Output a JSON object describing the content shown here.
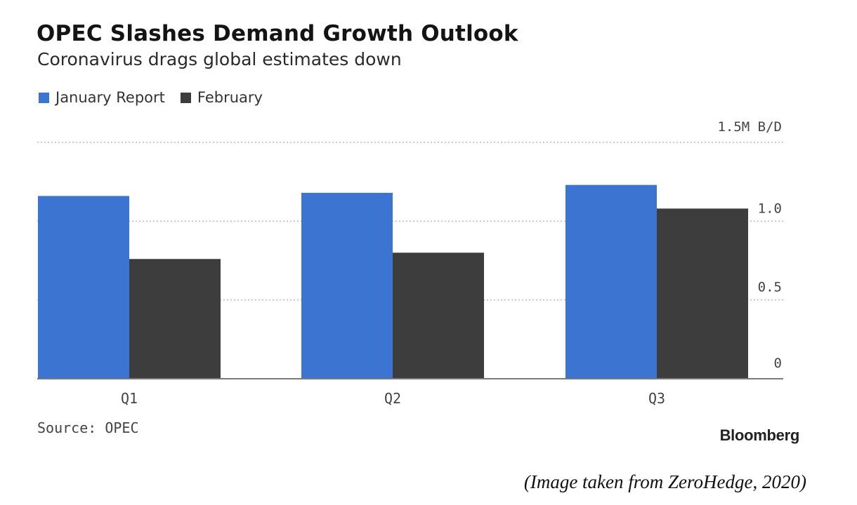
{
  "header": {
    "title": "OPEC Slashes Demand Growth Outlook",
    "subtitle": "Coronavirus drags global estimates down"
  },
  "legend": [
    {
      "label": "January Report",
      "color": "#3b74d1"
    },
    {
      "label": "February",
      "color": "#3d3d3d"
    }
  ],
  "chart_data": {
    "type": "bar",
    "title": "OPEC Slashes Demand Growth Outlook",
    "subtitle": "Coronavirus drags global estimates down",
    "categories": [
      "Q1",
      "Q2",
      "Q3"
    ],
    "series": [
      {
        "name": "January Report",
        "color": "#3b74d1",
        "values": [
          1.16,
          1.18,
          1.23
        ]
      },
      {
        "name": "February",
        "color": "#3d3d3d",
        "values": [
          0.76,
          0.8,
          1.08
        ]
      }
    ],
    "y_ticks": [
      {
        "value": 0,
        "label": "0"
      },
      {
        "value": 0.5,
        "label": "0.5"
      },
      {
        "value": 1.0,
        "label": "1.0"
      },
      {
        "value": 1.5,
        "label": "1.5M B/D"
      }
    ],
    "ylim": [
      0,
      1.5
    ],
    "y_axis_side": "right",
    "grid": "dotted horizontal",
    "legend_position": "top-left"
  },
  "footer": {
    "source": "Source: OPEC",
    "brand": "Bloomberg",
    "credit": "(Image taken from ZeroHedge, 2020)"
  }
}
